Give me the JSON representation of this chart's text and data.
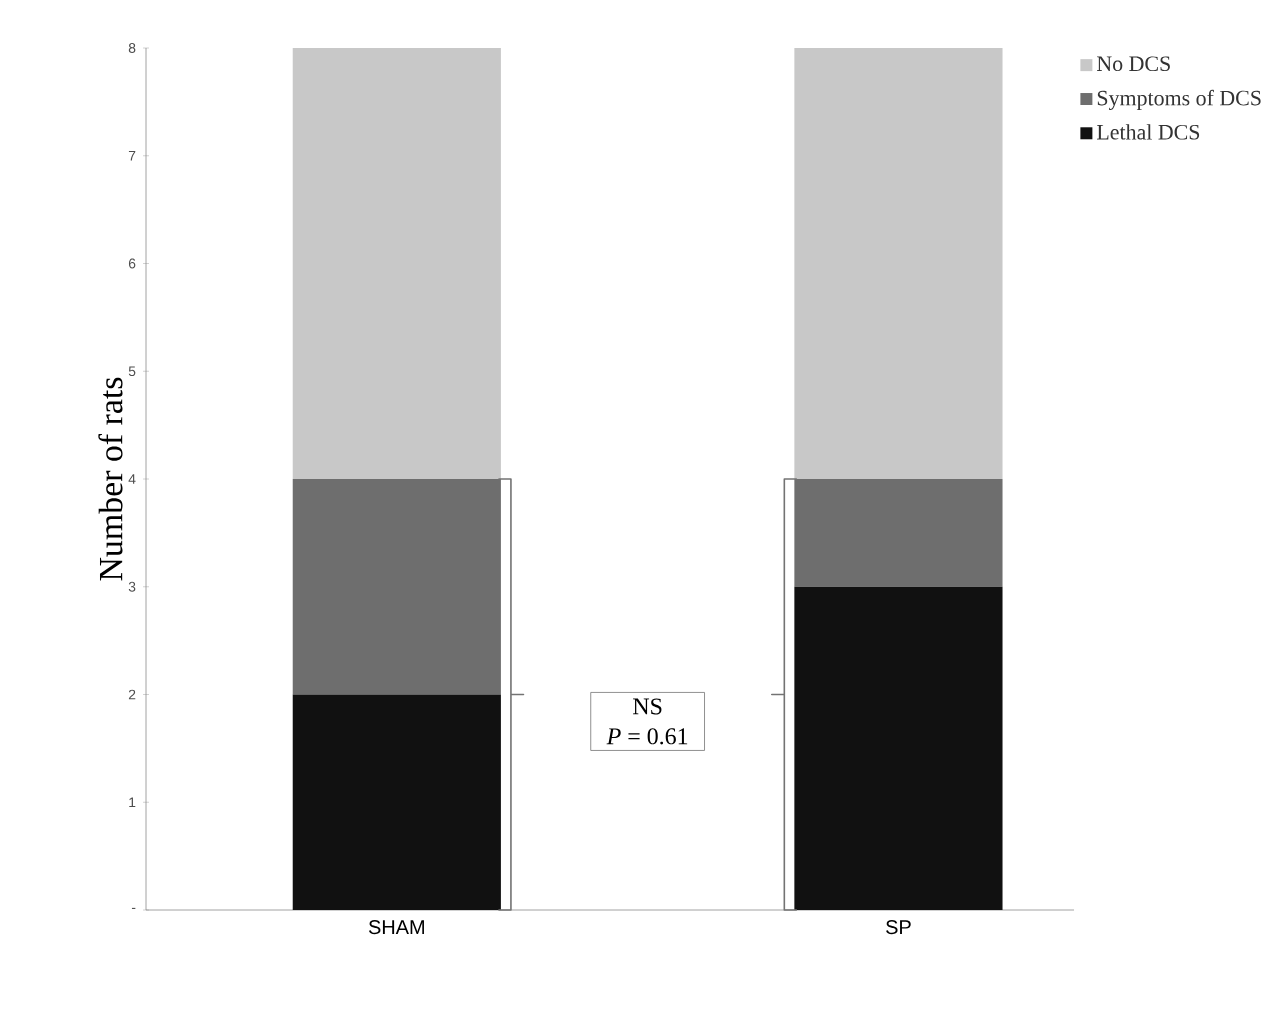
{
  "chart_data": {
    "type": "bar",
    "stacked": true,
    "ylabel": "Number of rats",
    "categories": [
      "SHAM",
      "SP"
    ],
    "series": [
      {
        "name": "Lethal DCS",
        "color": "#111111",
        "values": [
          2,
          3
        ]
      },
      {
        "name": "Symptoms of DCS",
        "color": "#6e6e6e",
        "values": [
          2,
          1
        ]
      },
      {
        "name": "No DCS",
        "color": "#c8c8c8",
        "values": [
          4,
          4
        ]
      }
    ],
    "ylim": [
      0,
      8
    ],
    "yticks": [
      {
        "value": 0,
        "label": "-"
      },
      1,
      2,
      3,
      4,
      5,
      6,
      7,
      8
    ],
    "grid": false,
    "legend": "top right",
    "annotations": [
      "NS",
      "*P* = 0.61"
    ]
  }
}
